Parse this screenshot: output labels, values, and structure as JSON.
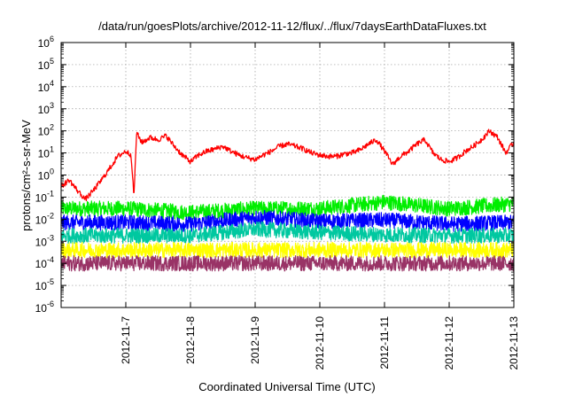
{
  "chart_data": {
    "type": "line",
    "title": "/data/run/goesPlots/archive/2012-11-12/flux/../flux/7daysEarthDataFluxes.txt",
    "xlabel": "Coordinated Universal Time (UTC)",
    "ylabel": "protons/cm²-s-sr-MeV",
    "yscale": "log",
    "ylim": [
      1e-06,
      1000000.0
    ],
    "y_tick_exponents": [
      "-6",
      "-5",
      "-4",
      "-3",
      "-2",
      "-1",
      "0",
      "1",
      "2",
      "3",
      "4",
      "5",
      "6"
    ],
    "x_start": "2012-11-06",
    "x_end": "2012-11-13",
    "x_ticks": [
      "2012-11-7",
      "2012-11-8",
      "2012-11-9",
      "2012-11-10",
      "2012-11-11",
      "2012-11-12",
      "2012-11-13"
    ],
    "grid": true,
    "series": [
      {
        "color": "#ff0000",
        "x": [
          "2012-11-06T00:00",
          "2012-11-06T03:00",
          "2012-11-06T06:00",
          "2012-11-06T09:00",
          "2012-11-06T12:00",
          "2012-11-06T15:00",
          "2012-11-06T18:00",
          "2012-11-06T21:00",
          "2012-11-07T00:00",
          "2012-11-07T02:00",
          "2012-11-07T03:00",
          "2012-11-07T04:00",
          "2012-11-07T06:00",
          "2012-11-07T09:00",
          "2012-11-07T12:00",
          "2012-11-07T15:00",
          "2012-11-07T18:00",
          "2012-11-07T21:00",
          "2012-11-08T00:00",
          "2012-11-08T03:00",
          "2012-11-08T06:00",
          "2012-11-08T09:00",
          "2012-11-08T12:00",
          "2012-11-08T15:00",
          "2012-11-08T18:00",
          "2012-11-08T21:00",
          "2012-11-09T00:00",
          "2012-11-09T03:00",
          "2012-11-09T06:00",
          "2012-11-09T09:00",
          "2012-11-09T12:00",
          "2012-11-09T15:00",
          "2012-11-09T18:00",
          "2012-11-09T21:00",
          "2012-11-10T00:00",
          "2012-11-10T03:00",
          "2012-11-10T06:00",
          "2012-11-10T09:00",
          "2012-11-10T12:00",
          "2012-11-10T15:00",
          "2012-11-10T18:00",
          "2012-11-10T21:00",
          "2012-11-11T00:00",
          "2012-11-11T03:00",
          "2012-11-11T06:00",
          "2012-11-11T09:00",
          "2012-11-11T12:00",
          "2012-11-11T15:00",
          "2012-11-11T18:00",
          "2012-11-11T21:00",
          "2012-11-12T00:00",
          "2012-11-12T03:00",
          "2012-11-12T06:00",
          "2012-11-12T09:00",
          "2012-11-12T12:00",
          "2012-11-12T15:00",
          "2012-11-12T18:00",
          "2012-11-12T21:00",
          "2012-11-13T00:00"
        ],
        "values": [
          0.3,
          0.6,
          0.2,
          0.08,
          0.2,
          0.6,
          2,
          7,
          12,
          8,
          0.1,
          80,
          30,
          50,
          40,
          60,
          20,
          8,
          4,
          8,
          12,
          15,
          20,
          12,
          8,
          6,
          5,
          8,
          12,
          20,
          25,
          20,
          15,
          10,
          8,
          7,
          7,
          9,
          10,
          14,
          25,
          40,
          12,
          3,
          7,
          12,
          25,
          40,
          10,
          5,
          4,
          6,
          12,
          20,
          40,
          100,
          50,
          10,
          30
        ]
      },
      {
        "color": "#00ee00",
        "x": [
          "2012-11-06T00:00",
          "2012-11-07T00:00",
          "2012-11-08T00:00",
          "2012-11-09T00:00",
          "2012-11-10T00:00",
          "2012-11-11T00:00",
          "2012-11-12T00:00",
          "2012-11-13T00:00"
        ],
        "values": [
          0.03,
          0.03,
          0.02,
          0.03,
          0.03,
          0.06,
          0.03,
          0.05
        ]
      },
      {
        "color": "#0000ff",
        "x": [
          "2012-11-06T00:00",
          "2012-11-07T00:00",
          "2012-11-08T00:00",
          "2012-11-09T00:00",
          "2012-11-10T00:00",
          "2012-11-11T00:00",
          "2012-11-12T00:00",
          "2012-11-13T00:00"
        ],
        "values": [
          0.007,
          0.007,
          0.006,
          0.012,
          0.008,
          0.009,
          0.006,
          0.007
        ]
      },
      {
        "color": "#00c8a0",
        "x": [
          "2012-11-06T00:00",
          "2012-11-07T00:00",
          "2012-11-08T00:00",
          "2012-11-09T00:00",
          "2012-11-10T00:00",
          "2012-11-11T00:00",
          "2012-11-12T00:00",
          "2012-11-13T00:00"
        ],
        "values": [
          0.0018,
          0.0018,
          0.0018,
          0.0035,
          0.0025,
          0.002,
          0.0018,
          0.0018
        ]
      },
      {
        "color": "#ffff00",
        "x": [
          "2012-11-06T00:00",
          "2012-11-07T00:00",
          "2012-11-08T00:00",
          "2012-11-09T00:00",
          "2012-11-10T00:00",
          "2012-11-11T00:00",
          "2012-11-12T00:00",
          "2012-11-13T00:00"
        ],
        "values": [
          0.0004,
          0.0004,
          0.0004,
          0.0004,
          0.0004,
          0.0004,
          0.0004,
          0.0004
        ]
      },
      {
        "color": "#993366",
        "x": [
          "2012-11-06T00:00",
          "2012-11-07T00:00",
          "2012-11-08T00:00",
          "2012-11-09T00:00",
          "2012-11-10T00:00",
          "2012-11-11T00:00",
          "2012-11-12T00:00",
          "2012-11-13T00:00"
        ],
        "values": [
          0.0001,
          0.0001,
          0.0001,
          0.0001,
          0.0001,
          0.0001,
          0.0001,
          0.0001
        ]
      }
    ]
  }
}
